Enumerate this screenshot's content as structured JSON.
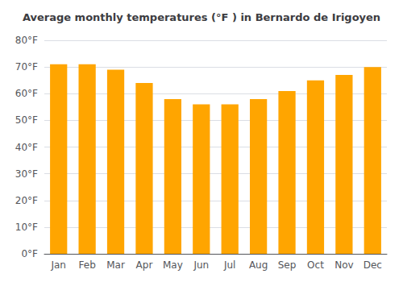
{
  "chart_data": {
    "type": "bar",
    "title": "Average monthly temperatures (°F ) in Bernardo de Irigoyen",
    "categories": [
      "Jan",
      "Feb",
      "Mar",
      "Apr",
      "May",
      "Jun",
      "Jul",
      "Aug",
      "Sep",
      "Oct",
      "Nov",
      "Dec"
    ],
    "values": [
      71,
      71,
      69,
      64,
      58,
      56,
      56,
      58,
      61,
      65,
      67,
      70
    ],
    "color": "#FFA500",
    "ylim": [
      0,
      80
    ],
    "yticks": [
      {
        "value": 0,
        "label": "0°F"
      },
      {
        "value": 10,
        "label": "10°F"
      },
      {
        "value": 20,
        "label": "20°F"
      },
      {
        "value": 30,
        "label": "30°F"
      },
      {
        "value": 40,
        "label": "40°F"
      },
      {
        "value": 50,
        "label": "50°F"
      },
      {
        "value": 60,
        "label": "60°F"
      },
      {
        "value": 70,
        "label": "70°F"
      },
      {
        "value": 80,
        "label": "80°F"
      }
    ],
    "grid": true
  }
}
